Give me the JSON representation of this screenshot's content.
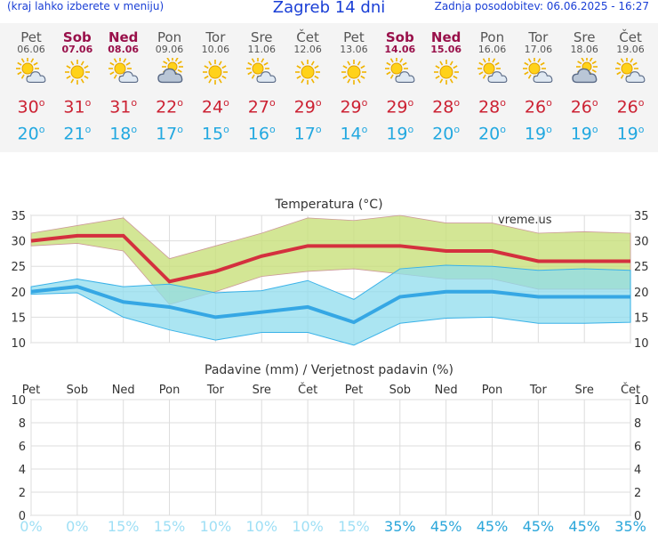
{
  "header": {
    "menu_note": "(kraj lahko izberete v meniju)",
    "title": "Zagreb 14 dni",
    "updated": "Zadnja posodobitev: 06.06.2025 - 16:27"
  },
  "days": [
    {
      "name": "Pet",
      "date": "06.06",
      "weekend": false,
      "icon": "sun-cloud-icon",
      "tmax": "30",
      "tmin": "20",
      "prob": "0%"
    },
    {
      "name": "Sob",
      "date": "07.06",
      "weekend": true,
      "icon": "sun-icon",
      "tmax": "31",
      "tmin": "21",
      "prob": "0%"
    },
    {
      "name": "Ned",
      "date": "08.06",
      "weekend": true,
      "icon": "sun-cloud-icon",
      "tmax": "31",
      "tmin": "18",
      "prob": "15%"
    },
    {
      "name": "Pon",
      "date": "09.06",
      "weekend": false,
      "icon": "cloud-sun-icon",
      "tmax": "22",
      "tmin": "17",
      "prob": "15%"
    },
    {
      "name": "Tor",
      "date": "10.06",
      "weekend": false,
      "icon": "sun-icon",
      "tmax": "24",
      "tmin": "15",
      "prob": "10%"
    },
    {
      "name": "Sre",
      "date": "11.06",
      "weekend": false,
      "icon": "sun-cloud-icon",
      "tmax": "27",
      "tmin": "16",
      "prob": "10%"
    },
    {
      "name": "Čet",
      "date": "12.06",
      "weekend": false,
      "icon": "sun-icon",
      "tmax": "29",
      "tmin": "17",
      "prob": "10%"
    },
    {
      "name": "Pet",
      "date": "13.06",
      "weekend": false,
      "icon": "sun-icon",
      "tmax": "29",
      "tmin": "14",
      "prob": "15%"
    },
    {
      "name": "Sob",
      "date": "14.06",
      "weekend": true,
      "icon": "sun-cloud-icon",
      "tmax": "29",
      "tmin": "19",
      "prob": "35%"
    },
    {
      "name": "Ned",
      "date": "15.06",
      "weekend": true,
      "icon": "sun-icon",
      "tmax": "28",
      "tmin": "20",
      "prob": "45%"
    },
    {
      "name": "Pon",
      "date": "16.06",
      "weekend": false,
      "icon": "sun-cloud-icon",
      "tmax": "28",
      "tmin": "20",
      "prob": "45%"
    },
    {
      "name": "Tor",
      "date": "17.06",
      "weekend": false,
      "icon": "sun-cloud-icon",
      "tmax": "26",
      "tmin": "19",
      "prob": "45%"
    },
    {
      "name": "Sre",
      "date": "18.06",
      "weekend": false,
      "icon": "cloud-sun-icon",
      "tmax": "26",
      "tmin": "19",
      "prob": "45%"
    },
    {
      "name": "Čet",
      "date": "19.06",
      "weekend": false,
      "icon": "sun-cloud-icon",
      "tmax": "26",
      "tmin": "19",
      "prob": "35%"
    }
  ],
  "colors": {
    "accent": "#1a3fd6",
    "max": "#cc2233",
    "min": "#22a8e0",
    "weekend": "#99104a",
    "max_band": "#c8e07a",
    "min_band": "#8fdcee",
    "prob_low": "#9edff5",
    "prob_high": "#2aa6da"
  },
  "chart_data": [
    {
      "type": "line",
      "title": "Temperatura (°C)",
      "watermark": "vreme.us",
      "ylim": [
        10,
        35
      ],
      "yticks": [
        10,
        15,
        20,
        25,
        30,
        35
      ],
      "x": [
        "06.06",
        "07.06",
        "08.06",
        "09.06",
        "10.06",
        "11.06",
        "12.06",
        "13.06",
        "14.06",
        "15.06",
        "16.06",
        "17.06",
        "18.06",
        "19.06"
      ],
      "series": [
        {
          "role": "max",
          "values": [
            30,
            31,
            31,
            22,
            24,
            27,
            29,
            29,
            29,
            28,
            28,
            26,
            26,
            26
          ],
          "band_high": [
            31.5,
            33,
            34.5,
            26.5,
            29,
            31.5,
            34.5,
            34,
            35,
            33.5,
            33.5,
            31.5,
            31.8,
            31.5
          ],
          "band_low": [
            29,
            29.5,
            28,
            17.5,
            20,
            23,
            24,
            24.5,
            23.5,
            22.5,
            22.5,
            20.5,
            20.5,
            20.5
          ]
        },
        {
          "role": "min",
          "values": [
            20,
            21,
            18,
            17,
            15,
            16,
            17,
            14,
            19,
            20,
            20,
            19,
            19,
            19
          ],
          "band_high": [
            21,
            22.5,
            21,
            21.5,
            19.8,
            20.2,
            22.2,
            18.5,
            24.5,
            25.2,
            25,
            24.2,
            24.5,
            24.2
          ],
          "band_low": [
            19.5,
            19.8,
            15,
            12.5,
            10.5,
            12,
            12,
            9.5,
            13.8,
            14.8,
            15,
            13.8,
            13.8,
            14
          ]
        }
      ]
    },
    {
      "type": "bar",
      "title": "Padavine (mm) / Verjetnost padavin (%)",
      "ylim": [
        0,
        10
      ],
      "yticks": [
        0,
        2,
        4,
        6,
        8,
        10
      ],
      "categories": [
        "Pet",
        "Sob",
        "Ned",
        "Pon",
        "Tor",
        "Sre",
        "Čet",
        "Pet",
        "Sob",
        "Ned",
        "Pon",
        "Tor",
        "Sre",
        "Čet"
      ],
      "values": [
        0,
        0,
        0,
        0,
        0,
        0,
        0,
        0,
        0,
        0,
        0,
        0,
        0,
        0
      ],
      "probability": [
        "0%",
        "0%",
        "15%",
        "15%",
        "10%",
        "10%",
        "10%",
        "15%",
        "35%",
        "45%",
        "45%",
        "45%",
        "45%",
        "35%"
      ]
    }
  ]
}
